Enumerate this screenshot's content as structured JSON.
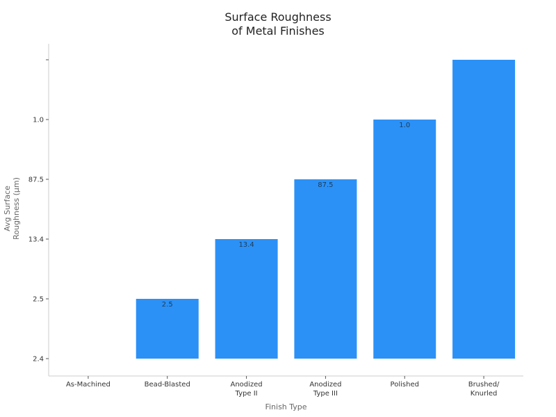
{
  "chart_data": {
    "type": "bar",
    "title_line1": "Surface Roughness",
    "title_line2": "of Metal Finishes",
    "xlabel": "Finish Type",
    "ylabel_line1": "Avg Surface",
    "ylabel_line2": "Roughness (µm)",
    "categories": [
      [
        "As-Machined"
      ],
      [
        "Bead-Blasted"
      ],
      [
        "Anodized",
        "Type II"
      ],
      [
        "Anodized",
        "Type III"
      ],
      [
        "Polished"
      ],
      [
        "Brushed/",
        "Knurled"
      ]
    ],
    "y_tick_labels": [
      "2.4",
      "2.5",
      "13.4",
      "87.5",
      "1.0",
      ""
    ],
    "bar_levels": [
      0,
      1,
      2,
      3,
      4,
      5
    ],
    "value_labels": [
      "",
      "2.5",
      "13.4",
      "87.5",
      "1.0",
      ""
    ],
    "bar_color": "#2b91f7",
    "grid": false
  }
}
